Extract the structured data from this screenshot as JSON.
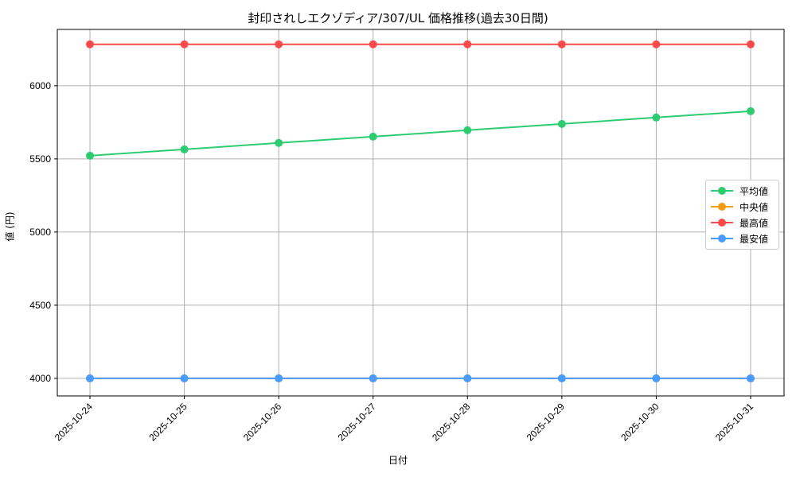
{
  "chart_data": {
    "type": "line",
    "title": "封印されしエクゾディア/307/UL 価格推移(過去30日間)",
    "xlabel": "日付",
    "ylabel": "値 (円)",
    "categories": [
      "2025-10-24",
      "2025-10-25",
      "2025-10-26",
      "2025-10-27",
      "2025-10-28",
      "2025-10-29",
      "2025-10-30",
      "2025-10-31"
    ],
    "yticks": [
      4000,
      4500,
      5000,
      5500,
      6000
    ],
    "ylim": [
      3880,
      6385
    ],
    "grid": true,
    "legend_position": "center right",
    "series": [
      {
        "name": "平均値",
        "color": "#2ecc71",
        "values": [
          5522,
          5565,
          5609,
          5652,
          5696,
          5739,
          5783,
          5826
        ]
      },
      {
        "name": "中央値",
        "color": "#f39c12",
        "values": [
          4000,
          4000,
          4000,
          4000,
          4000,
          4000,
          4000,
          4000
        ]
      },
      {
        "name": "最高値",
        "color": "#ff4a4a",
        "values": [
          6283,
          6283,
          6283,
          6283,
          6283,
          6283,
          6283,
          6283
        ]
      },
      {
        "name": "最安値",
        "color": "#4a9bff",
        "values": [
          4000,
          4000,
          4000,
          4000,
          4000,
          4000,
          4000,
          4000
        ]
      }
    ]
  }
}
